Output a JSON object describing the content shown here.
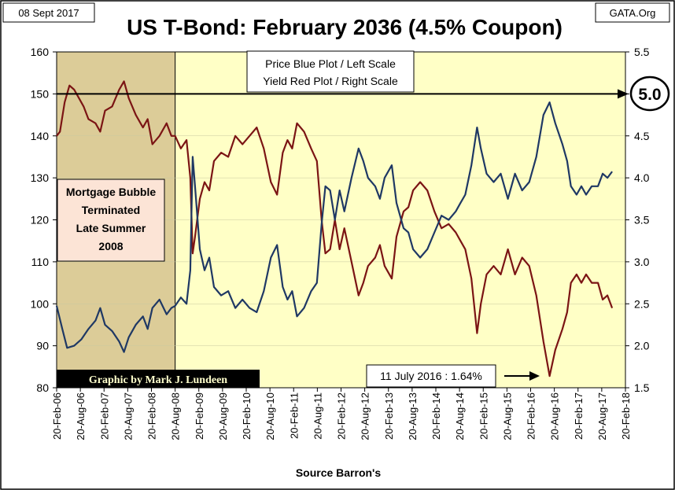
{
  "header": {
    "date": "08 Sept 2017",
    "title": "US T-Bond: February 2036 (4.5% Coupon)",
    "source_site": "GATA.Org"
  },
  "legend": {
    "line1": "Price Blue Plot / Left Scale",
    "line2": "Yield Red Plot / Right Scale"
  },
  "annotations": {
    "shaded_region_label": [
      "Mortgage Bubble",
      "Terminated",
      "Late Summer",
      "2008"
    ],
    "credit": "Graphic by Mark J. Lundeen",
    "low_callout": "11 July 2016 : 1.64%",
    "yield_marker": "5.0"
  },
  "colors": {
    "plot_bg": "#FFFFC6",
    "shaded_bg": "#DCCC98",
    "price_line": "#1F3864",
    "yield_line": "#7B1414",
    "credit_bg": "#000000",
    "credit_text": "#FFFFCC",
    "label_box_bg": "#FCE4D6"
  },
  "chart_data": {
    "type": "line",
    "title": "US T-Bond: February 2036 (4.5% Coupon)",
    "xlabel": "Source Barron's",
    "x_tick_labels": [
      "20-Feb-06",
      "20-Aug-06",
      "20-Feb-07",
      "20-Aug-07",
      "20-Feb-08",
      "20-Aug-08",
      "20-Feb-09",
      "20-Aug-09",
      "20-Feb-10",
      "20-Aug-10",
      "20-Feb-11",
      "20-Aug-11",
      "20-Feb-12",
      "20-Aug-12",
      "20-Feb-13",
      "20-Aug-13",
      "20-Feb-14",
      "20-Aug-14",
      "20-Feb-15",
      "20-Aug-15",
      "20-Feb-16",
      "20-Aug-16",
      "20-Feb-17",
      "20-Aug-17",
      "20-Feb-18"
    ],
    "x_range_years": [
      2006.13,
      2018.13
    ],
    "shaded_range_years": [
      2006.13,
      2008.63
    ],
    "left_axis": {
      "label": "Price",
      "range": [
        80,
        160
      ],
      "ticks": [
        "80",
        "90",
        "100",
        "110",
        "120",
        "130",
        "140",
        "150",
        "160"
      ]
    },
    "right_axis": {
      "label": "Yield",
      "range": [
        1.5,
        5.5
      ],
      "ticks": [
        "1.5",
        "2.0",
        "2.5",
        "3.0",
        "3.5",
        "4.0",
        "4.5",
        "5.0",
        "5.5"
      ]
    },
    "reference_line": {
      "axis": "right",
      "value": 5.0
    },
    "low_point": {
      "year": 2016.53,
      "yield": 1.64
    },
    "series": [
      {
        "name": "Price (left scale)",
        "axis": "left",
        "points": [
          [
            2006.13,
            99.5
          ],
          [
            2006.25,
            94
          ],
          [
            2006.35,
            89.5
          ],
          [
            2006.5,
            90
          ],
          [
            2006.65,
            91.5
          ],
          [
            2006.8,
            94
          ],
          [
            2006.95,
            96
          ],
          [
            2007.05,
            99
          ],
          [
            2007.15,
            95
          ],
          [
            2007.3,
            93.5
          ],
          [
            2007.45,
            91
          ],
          [
            2007.55,
            88.5
          ],
          [
            2007.65,
            92
          ],
          [
            2007.8,
            95
          ],
          [
            2007.95,
            97
          ],
          [
            2008.05,
            94
          ],
          [
            2008.15,
            99
          ],
          [
            2008.3,
            101
          ],
          [
            2008.45,
            97.5
          ],
          [
            2008.55,
            99
          ],
          [
            2008.63,
            99.5
          ],
          [
            2008.75,
            101.5
          ],
          [
            2008.87,
            100
          ],
          [
            2008.95,
            108
          ],
          [
            2009.0,
            135
          ],
          [
            2009.05,
            128
          ],
          [
            2009.15,
            113
          ],
          [
            2009.25,
            108
          ],
          [
            2009.35,
            111
          ],
          [
            2009.45,
            104
          ],
          [
            2009.6,
            102
          ],
          [
            2009.75,
            103
          ],
          [
            2009.9,
            99
          ],
          [
            2010.05,
            101
          ],
          [
            2010.2,
            99
          ],
          [
            2010.35,
            98
          ],
          [
            2010.5,
            103
          ],
          [
            2010.65,
            111
          ],
          [
            2010.78,
            114
          ],
          [
            2010.9,
            104
          ],
          [
            2011.0,
            101
          ],
          [
            2011.1,
            103
          ],
          [
            2011.2,
            97
          ],
          [
            2011.35,
            99
          ],
          [
            2011.5,
            103
          ],
          [
            2011.62,
            105
          ],
          [
            2011.72,
            119
          ],
          [
            2011.8,
            128
          ],
          [
            2011.9,
            127
          ],
          [
            2012.0,
            120
          ],
          [
            2012.1,
            127
          ],
          [
            2012.2,
            122
          ],
          [
            2012.35,
            130
          ],
          [
            2012.5,
            137
          ],
          [
            2012.6,
            134
          ],
          [
            2012.7,
            130
          ],
          [
            2012.85,
            128
          ],
          [
            2012.95,
            125
          ],
          [
            2013.05,
            130
          ],
          [
            2013.2,
            133
          ],
          [
            2013.3,
            124
          ],
          [
            2013.45,
            118
          ],
          [
            2013.55,
            117
          ],
          [
            2013.65,
            113
          ],
          [
            2013.8,
            111
          ],
          [
            2013.95,
            113
          ],
          [
            2014.1,
            117
          ],
          [
            2014.25,
            121
          ],
          [
            2014.4,
            120
          ],
          [
            2014.55,
            122
          ],
          [
            2014.65,
            124
          ],
          [
            2014.75,
            126
          ],
          [
            2014.88,
            133
          ],
          [
            2015.0,
            142
          ],
          [
            2015.08,
            137
          ],
          [
            2015.2,
            131
          ],
          [
            2015.35,
            129
          ],
          [
            2015.5,
            131
          ],
          [
            2015.65,
            125
          ],
          [
            2015.8,
            131
          ],
          [
            2015.95,
            127
          ],
          [
            2016.1,
            129
          ],
          [
            2016.25,
            135
          ],
          [
            2016.4,
            145
          ],
          [
            2016.53,
            148
          ],
          [
            2016.65,
            143
          ],
          [
            2016.8,
            138
          ],
          [
            2016.9,
            134
          ],
          [
            2016.98,
            128
          ],
          [
            2017.1,
            126
          ],
          [
            2017.2,
            128
          ],
          [
            2017.3,
            126
          ],
          [
            2017.42,
            128
          ],
          [
            2017.55,
            128
          ],
          [
            2017.65,
            131
          ],
          [
            2017.75,
            130
          ],
          [
            2017.85,
            131.5
          ]
        ]
      },
      {
        "name": "Yield (right scale)",
        "axis": "right",
        "points": [
          [
            2006.13,
            4.5
          ],
          [
            2006.2,
            4.55
          ],
          [
            2006.3,
            4.9
          ],
          [
            2006.4,
            5.1
          ],
          [
            2006.5,
            5.05
          ],
          [
            2006.6,
            4.95
          ],
          [
            2006.7,
            4.85
          ],
          [
            2006.8,
            4.7
          ],
          [
            2006.95,
            4.65
          ],
          [
            2007.05,
            4.55
          ],
          [
            2007.15,
            4.8
          ],
          [
            2007.3,
            4.85
          ],
          [
            2007.45,
            5.05
          ],
          [
            2007.55,
            5.15
          ],
          [
            2007.65,
            4.95
          ],
          [
            2007.8,
            4.75
          ],
          [
            2007.95,
            4.6
          ],
          [
            2008.05,
            4.7
          ],
          [
            2008.15,
            4.4
          ],
          [
            2008.3,
            4.5
          ],
          [
            2008.45,
            4.65
          ],
          [
            2008.55,
            4.5
          ],
          [
            2008.63,
            4.5
          ],
          [
            2008.75,
            4.35
          ],
          [
            2008.87,
            4.45
          ],
          [
            2008.95,
            4.0
          ],
          [
            2009.0,
            3.1
          ],
          [
            2009.05,
            3.3
          ],
          [
            2009.15,
            3.75
          ],
          [
            2009.25,
            3.95
          ],
          [
            2009.35,
            3.85
          ],
          [
            2009.45,
            4.2
          ],
          [
            2009.6,
            4.3
          ],
          [
            2009.75,
            4.25
          ],
          [
            2009.9,
            4.5
          ],
          [
            2010.05,
            4.4
          ],
          [
            2010.2,
            4.5
          ],
          [
            2010.35,
            4.6
          ],
          [
            2010.5,
            4.35
          ],
          [
            2010.65,
            3.95
          ],
          [
            2010.78,
            3.8
          ],
          [
            2010.9,
            4.3
          ],
          [
            2011.0,
            4.45
          ],
          [
            2011.1,
            4.35
          ],
          [
            2011.2,
            4.65
          ],
          [
            2011.35,
            4.55
          ],
          [
            2011.5,
            4.35
          ],
          [
            2011.62,
            4.2
          ],
          [
            2011.72,
            3.5
          ],
          [
            2011.8,
            3.1
          ],
          [
            2011.9,
            3.15
          ],
          [
            2012.0,
            3.5
          ],
          [
            2012.1,
            3.15
          ],
          [
            2012.2,
            3.4
          ],
          [
            2012.35,
            3.0
          ],
          [
            2012.5,
            2.6
          ],
          [
            2012.6,
            2.75
          ],
          [
            2012.7,
            2.95
          ],
          [
            2012.85,
            3.05
          ],
          [
            2012.95,
            3.2
          ],
          [
            2013.05,
            2.95
          ],
          [
            2013.2,
            2.8
          ],
          [
            2013.3,
            3.3
          ],
          [
            2013.45,
            3.6
          ],
          [
            2013.55,
            3.65
          ],
          [
            2013.65,
            3.85
          ],
          [
            2013.8,
            3.95
          ],
          [
            2013.95,
            3.85
          ],
          [
            2014.1,
            3.6
          ],
          [
            2014.25,
            3.4
          ],
          [
            2014.4,
            3.45
          ],
          [
            2014.55,
            3.35
          ],
          [
            2014.65,
            3.25
          ],
          [
            2014.75,
            3.15
          ],
          [
            2014.88,
            2.8
          ],
          [
            2015.0,
            2.15
          ],
          [
            2015.08,
            2.5
          ],
          [
            2015.2,
            2.85
          ],
          [
            2015.35,
            2.95
          ],
          [
            2015.5,
            2.85
          ],
          [
            2015.65,
            3.15
          ],
          [
            2015.8,
            2.85
          ],
          [
            2015.95,
            3.05
          ],
          [
            2016.1,
            2.95
          ],
          [
            2016.25,
            2.6
          ],
          [
            2016.4,
            2.05
          ],
          [
            2016.53,
            1.64
          ],
          [
            2016.65,
            1.95
          ],
          [
            2016.8,
            2.2
          ],
          [
            2016.9,
            2.4
          ],
          [
            2016.98,
            2.75
          ],
          [
            2017.1,
            2.85
          ],
          [
            2017.2,
            2.75
          ],
          [
            2017.3,
            2.85
          ],
          [
            2017.42,
            2.75
          ],
          [
            2017.55,
            2.75
          ],
          [
            2017.65,
            2.55
          ],
          [
            2017.75,
            2.6
          ],
          [
            2017.85,
            2.45
          ]
        ]
      }
    ]
  }
}
